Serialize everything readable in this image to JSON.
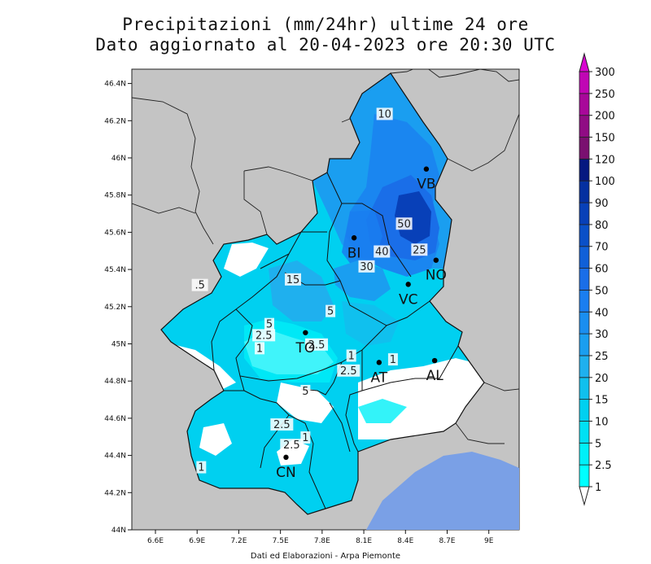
{
  "title": {
    "line1": "Precipitazioni (mm/24hr) ultime 24 ore",
    "line2": "Dato aggiornato al 20-04-2023 ore 20:30 UTC"
  },
  "credits": "Dati ed Elaborazioni - Arpa Piemonte",
  "axes": {
    "x_ticks": [
      "6.6E",
      "6.9E",
      "7.2E",
      "7.5E",
      "7.8E",
      "8.1E",
      "8.4E",
      "8.7E",
      "9E"
    ],
    "y_ticks": [
      "44N",
      "44.2N",
      "44.4N",
      "44.6N",
      "44.8N",
      "45N",
      "45.2N",
      "45.4N",
      "45.6N",
      "45.8N",
      "46N",
      "46.2N",
      "46.4N"
    ]
  },
  "colorbar": {
    "levels": [
      "1",
      "2.5",
      "5",
      "10",
      "15",
      "20",
      "25",
      "30",
      "40",
      "50",
      "60",
      "70",
      "80",
      "90",
      "100",
      "120",
      "150",
      "200",
      "250",
      "300"
    ],
    "colors": [
      "#00ffff",
      "#00f0f8",
      "#00e0f4",
      "#00d0f0",
      "#10c0ee",
      "#1fb0ee",
      "#1a9ef0",
      "#1a8ef0",
      "#1a7ef0",
      "#1a6ee8",
      "#1060d8",
      "#0a50c8",
      "#0840b8",
      "#0530a0",
      "#051880",
      "#7a1070",
      "#900c84",
      "#a8089a",
      "#c006b4",
      "#d805d0"
    ]
  },
  "cities": [
    {
      "name": "VB",
      "lon": 8.55,
      "lat": 45.94
    },
    {
      "name": "BI",
      "lon": 8.03,
      "lat": 45.57
    },
    {
      "name": "NO",
      "lon": 8.62,
      "lat": 45.45
    },
    {
      "name": "VC",
      "lon": 8.42,
      "lat": 45.32
    },
    {
      "name": "TO",
      "lon": 7.68,
      "lat": 45.06
    },
    {
      "name": "AT",
      "lon": 8.21,
      "lat": 44.9
    },
    {
      "name": "AL",
      "lon": 8.61,
      "lat": 44.91
    },
    {
      "name": "CN",
      "lon": 7.54,
      "lat": 44.39
    }
  ],
  "contour_labels": [
    {
      "text": "10",
      "lon": 8.25,
      "lat": 46.23
    },
    {
      "text": "50",
      "lon": 8.39,
      "lat": 45.64
    },
    {
      "text": "25",
      "lon": 8.5,
      "lat": 45.5
    },
    {
      "text": "40",
      "lon": 8.23,
      "lat": 45.49
    },
    {
      "text": "30",
      "lon": 8.12,
      "lat": 45.41
    },
    {
      "text": "15",
      "lon": 7.59,
      "lat": 45.34
    },
    {
      "text": ".5",
      "lon": 6.92,
      "lat": 45.31
    },
    {
      "text": "5",
      "lon": 7.86,
      "lat": 45.17
    },
    {
      "text": "5",
      "lon": 7.42,
      "lat": 45.1
    },
    {
      "text": "2.5",
      "lon": 7.38,
      "lat": 45.04
    },
    {
      "text": "2.5",
      "lon": 7.76,
      "lat": 44.99
    },
    {
      "text": "1",
      "lon": 7.35,
      "lat": 44.97
    },
    {
      "text": "1",
      "lon": 8.01,
      "lat": 44.93
    },
    {
      "text": "1",
      "lon": 8.31,
      "lat": 44.91
    },
    {
      "text": "2.5",
      "lon": 7.99,
      "lat": 44.85
    },
    {
      "text": "5",
      "lon": 7.68,
      "lat": 44.74
    },
    {
      "text": "2.5",
      "lon": 7.51,
      "lat": 44.56
    },
    {
      "text": "1",
      "lon": 7.68,
      "lat": 44.49
    },
    {
      "text": "2.5",
      "lon": 7.58,
      "lat": 44.45
    },
    {
      "text": "1",
      "lon": 6.93,
      "lat": 44.33
    }
  ]
}
